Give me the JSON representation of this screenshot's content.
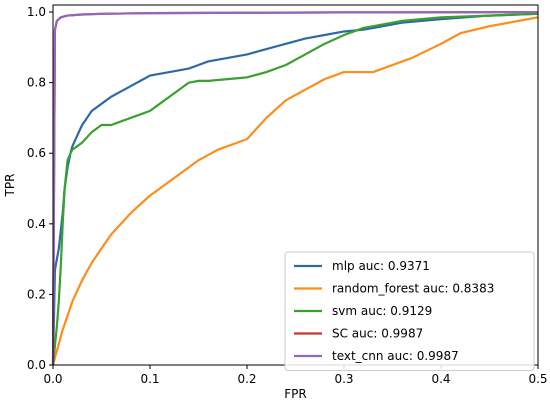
{
  "chart_data": {
    "type": "line",
    "title": "",
    "xlabel": "FPR",
    "ylabel": "TPR",
    "xlim": [
      0.0,
      0.5
    ],
    "ylim": [
      0.0,
      1.02
    ],
    "x_ticks": [
      "0.0",
      "0.1",
      "0.2",
      "0.3",
      "0.4",
      "0.5"
    ],
    "y_ticks": [
      "0.0",
      "0.2",
      "0.4",
      "0.6",
      "0.8",
      "1.0"
    ],
    "grid": false,
    "legend_position": "bottom-right",
    "series": [
      {
        "name": "mlp  auc: 0.9371",
        "color": "#2e6aa5",
        "x": [
          0.0,
          0.002,
          0.004,
          0.006,
          0.008,
          0.01,
          0.012,
          0.015,
          0.018,
          0.02,
          0.025,
          0.03,
          0.035,
          0.04,
          0.05,
          0.06,
          0.07,
          0.08,
          0.09,
          0.1,
          0.11,
          0.12,
          0.13,
          0.14,
          0.15,
          0.16,
          0.18,
          0.2,
          0.22,
          0.24,
          0.26,
          0.28,
          0.3,
          0.32,
          0.34,
          0.36,
          0.4,
          0.45,
          0.5
        ],
        "y": [
          0.0,
          0.27,
          0.3,
          0.33,
          0.38,
          0.43,
          0.5,
          0.56,
          0.6,
          0.62,
          0.65,
          0.68,
          0.7,
          0.72,
          0.74,
          0.76,
          0.775,
          0.79,
          0.805,
          0.82,
          0.825,
          0.83,
          0.835,
          0.84,
          0.85,
          0.86,
          0.87,
          0.88,
          0.895,
          0.91,
          0.925,
          0.935,
          0.945,
          0.95,
          0.96,
          0.97,
          0.98,
          0.99,
          0.995
        ]
      },
      {
        "name": "random_forest  auc: 0.8383",
        "color": "#ff8c1a",
        "x": [
          0.0,
          0.005,
          0.01,
          0.02,
          0.03,
          0.04,
          0.05,
          0.06,
          0.07,
          0.08,
          0.1,
          0.12,
          0.14,
          0.15,
          0.17,
          0.2,
          0.22,
          0.24,
          0.26,
          0.28,
          0.3,
          0.32,
          0.33,
          0.35,
          0.37,
          0.4,
          0.42,
          0.45,
          0.48,
          0.5
        ],
        "y": [
          0.0,
          0.05,
          0.1,
          0.18,
          0.24,
          0.29,
          0.33,
          0.37,
          0.4,
          0.43,
          0.48,
          0.52,
          0.56,
          0.58,
          0.61,
          0.64,
          0.7,
          0.75,
          0.78,
          0.81,
          0.83,
          0.83,
          0.83,
          0.85,
          0.87,
          0.91,
          0.94,
          0.96,
          0.975,
          0.985
        ]
      },
      {
        "name": "svm  auc: 0.9129",
        "color": "#3aa02e",
        "x": [
          0.0,
          0.004,
          0.006,
          0.008,
          0.01,
          0.012,
          0.015,
          0.018,
          0.02,
          0.025,
          0.03,
          0.04,
          0.05,
          0.06,
          0.07,
          0.08,
          0.09,
          0.1,
          0.11,
          0.12,
          0.13,
          0.14,
          0.15,
          0.16,
          0.18,
          0.2,
          0.22,
          0.24,
          0.26,
          0.28,
          0.3,
          0.32,
          0.34,
          0.36,
          0.4,
          0.45,
          0.5
        ],
        "y": [
          0.0,
          0.11,
          0.18,
          0.28,
          0.4,
          0.5,
          0.58,
          0.6,
          0.61,
          0.62,
          0.63,
          0.66,
          0.68,
          0.68,
          0.69,
          0.7,
          0.71,
          0.72,
          0.74,
          0.76,
          0.78,
          0.8,
          0.805,
          0.805,
          0.81,
          0.815,
          0.83,
          0.85,
          0.88,
          0.91,
          0.935,
          0.955,
          0.965,
          0.975,
          0.985,
          0.99,
          0.995
        ]
      },
      {
        "name": "SC  auc: 0.9987",
        "color": "#c0392b",
        "x": [
          0.0,
          0.002,
          0.004,
          0.008,
          0.015,
          0.03,
          0.05,
          0.1,
          0.2,
          0.3,
          0.5
        ],
        "y": [
          0.0,
          0.95,
          0.975,
          0.985,
          0.99,
          0.993,
          0.995,
          0.997,
          0.998,
          0.999,
          1.0
        ]
      },
      {
        "name": "text_cnn  auc: 0.9987",
        "color": "#9467bd",
        "x": [
          0.0,
          0.002,
          0.004,
          0.008,
          0.015,
          0.03,
          0.05,
          0.1,
          0.2,
          0.3,
          0.5
        ],
        "y": [
          0.0,
          0.95,
          0.975,
          0.985,
          0.99,
          0.993,
          0.995,
          0.997,
          0.998,
          0.999,
          1.0
        ]
      }
    ]
  }
}
